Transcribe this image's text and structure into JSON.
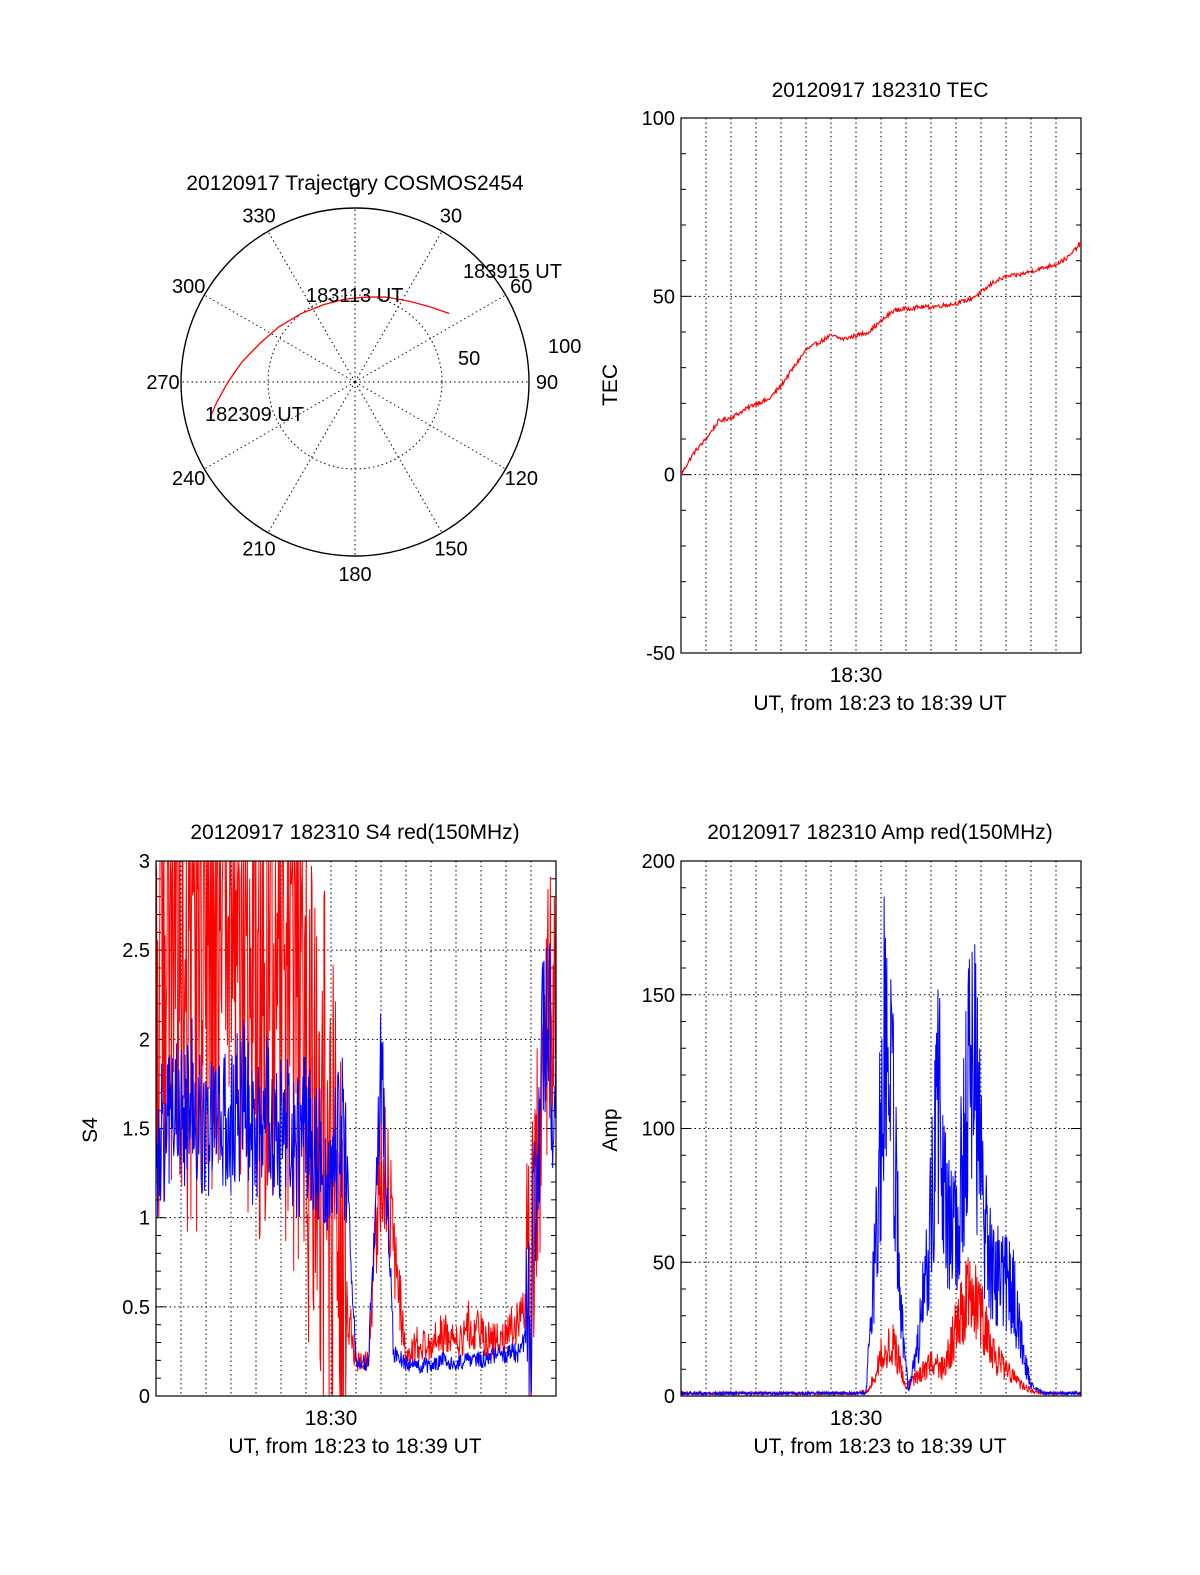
{
  "colors": {
    "red": "#ff0000",
    "blue": "#0000ff",
    "axis": "#000000"
  },
  "chart_data": [
    {
      "type": "polar",
      "title": "20120917 Trajectory COSMOS2454",
      "angle_labels": [
        "0",
        "30",
        "60",
        "90",
        "120",
        "150",
        "180",
        "210",
        "240",
        "270",
        "300",
        "330"
      ],
      "radial_labels": [
        "50",
        "100"
      ],
      "rlim": [
        0,
        100
      ],
      "trajectory": {
        "color": "#ff0000",
        "points": [
          {
            "az": 256,
            "el": 14
          },
          {
            "az": 262,
            "el": 20
          },
          {
            "az": 270,
            "el": 27
          },
          {
            "az": 280,
            "el": 34
          },
          {
            "az": 292,
            "el": 41
          },
          {
            "az": 306,
            "el": 46
          },
          {
            "az": 322,
            "el": 50
          },
          {
            "az": 338,
            "el": 52
          },
          {
            "az": 353,
            "el": 52
          },
          {
            "az": 6,
            "el": 51
          },
          {
            "az": 20,
            "el": 48
          },
          {
            "az": 34,
            "el": 44
          },
          {
            "az": 45,
            "el": 39
          },
          {
            "az": 54,
            "el": 33
          }
        ]
      },
      "annotations": [
        "183915 UT",
        "183113 UT",
        "182309 UT"
      ]
    },
    {
      "type": "line",
      "title": "20120917 182310 TEC",
      "ylabel": "TEC",
      "xlabel": "UT, from 18:23 to 18:39 UT",
      "xtick_label": "18:30",
      "yticks": [
        "100",
        "50",
        "0",
        "-50"
      ],
      "ylim": [
        -50,
        100
      ],
      "series": [
        {
          "color": "#ff0000",
          "x": [
            0,
            0.5,
            1,
            1.5,
            2,
            2.5,
            3,
            3.5,
            4,
            4.5,
            5,
            5.5,
            6,
            6.5,
            7,
            7.5,
            8,
            8.5,
            9,
            9.5,
            10,
            10.5,
            11,
            11.5,
            12,
            12.5,
            13,
            13.5,
            14,
            14.5,
            15,
            15.5,
            16
          ],
          "values": [
            0,
            6,
            10,
            15,
            16,
            18,
            20,
            21,
            25,
            30,
            35,
            37,
            39,
            38,
            39,
            40,
            43,
            46,
            46.5,
            47,
            47,
            47.5,
            48,
            49,
            51,
            54,
            55.5,
            56,
            57,
            58,
            59,
            61,
            65
          ]
        }
      ]
    },
    {
      "type": "line",
      "title": "20120917 182310 S4 red(150MHz)",
      "ylabel": "S4",
      "xlabel": "UT, from 18:23 to 18:39 UT",
      "xtick_label": "18:30",
      "yticks": [
        "3",
        "2.5",
        "2",
        "1.5",
        "1",
        "0.5",
        "0"
      ],
      "ylim": [
        0,
        3
      ],
      "series": [
        {
          "color": "#ff0000",
          "x": [
            0,
            0.5,
            1,
            1.5,
            2,
            2.5,
            3,
            3.5,
            4,
            4.5,
            5,
            5.5,
            6,
            6.5,
            7,
            7.5,
            8,
            8.5,
            9,
            9.5,
            10,
            10.5,
            11,
            11.5,
            12,
            12.5,
            13,
            13.5,
            14,
            14.5,
            15,
            15.5,
            16
          ],
          "values": [
            2.4,
            2.8,
            2.6,
            2.3,
            2.6,
            2.8,
            2.5,
            2.7,
            2.4,
            2.6,
            2.5,
            2.2,
            2.0,
            1.5,
            1.1,
            0.6,
            0.2,
            0.2,
            1.4,
            0.9,
            0.2,
            0.3,
            0.3,
            0.35,
            0.3,
            0.4,
            0.35,
            0.3,
            0.35,
            0.4,
            0.6,
            1.8,
            2.6
          ]
        },
        {
          "color": "#0000ff",
          "x": [
            0,
            0.5,
            1,
            1.5,
            2,
            2.5,
            3,
            3.5,
            4,
            4.5,
            5,
            5.5,
            6,
            6.5,
            7,
            7.5,
            8,
            8.5,
            9,
            9.5,
            10,
            10.5,
            11,
            11.5,
            12,
            12.5,
            13,
            13.5,
            14,
            14.5,
            15,
            15.5,
            16
          ],
          "values": [
            1.3,
            1.6,
            1.5,
            1.7,
            1.5,
            1.6,
            1.5,
            1.7,
            1.4,
            1.6,
            1.5,
            1.4,
            1.5,
            1.4,
            1.3,
            1.5,
            0.2,
            0.18,
            2.0,
            0.25,
            0.18,
            0.17,
            0.17,
            0.2,
            0.18,
            0.2,
            0.2,
            0.22,
            0.23,
            0.25,
            0.4,
            2.2,
            1.7
          ]
        }
      ]
    },
    {
      "type": "line",
      "title": "20120917 182310 Amp red(150MHz)",
      "ylabel": "Amp",
      "xlabel": "UT, from 18:23 to 18:39 UT",
      "xtick_label": "18:30",
      "yticks": [
        "200",
        "150",
        "100",
        "50",
        "0"
      ],
      "ylim": [
        0,
        200
      ],
      "series": [
        {
          "color": "#ff0000",
          "x": [
            0,
            1,
            2,
            3,
            4,
            5,
            6,
            7,
            7.5,
            8,
            8.5,
            9,
            9.5,
            10,
            10.5,
            11,
            11.5,
            12,
            12.5,
            13,
            13.5,
            14,
            14.5,
            15,
            16
          ],
          "values": [
            1,
            1,
            1,
            1,
            1,
            1,
            1,
            1,
            2,
            15,
            20,
            3,
            8,
            12,
            10,
            25,
            40,
            30,
            15,
            10,
            5,
            2,
            1,
            1,
            1
          ]
        },
        {
          "color": "#0000ff",
          "x": [
            0,
            1,
            2,
            3,
            4,
            5,
            6,
            7,
            7.4,
            7.8,
            8.2,
            8.5,
            8.8,
            9.1,
            9.5,
            9.9,
            10.3,
            10.6,
            11,
            11.3,
            11.7,
            12.1,
            12.5,
            12.9,
            13.3,
            13.7,
            14,
            14.5,
            15,
            16
          ],
          "values": [
            1,
            1,
            1,
            1,
            1,
            1,
            1,
            1,
            1,
            55,
            150,
            100,
            30,
            2,
            20,
            55,
            110,
            65,
            60,
            95,
            130,
            65,
            45,
            45,
            38,
            15,
            4,
            1,
            1,
            1
          ]
        }
      ]
    }
  ]
}
